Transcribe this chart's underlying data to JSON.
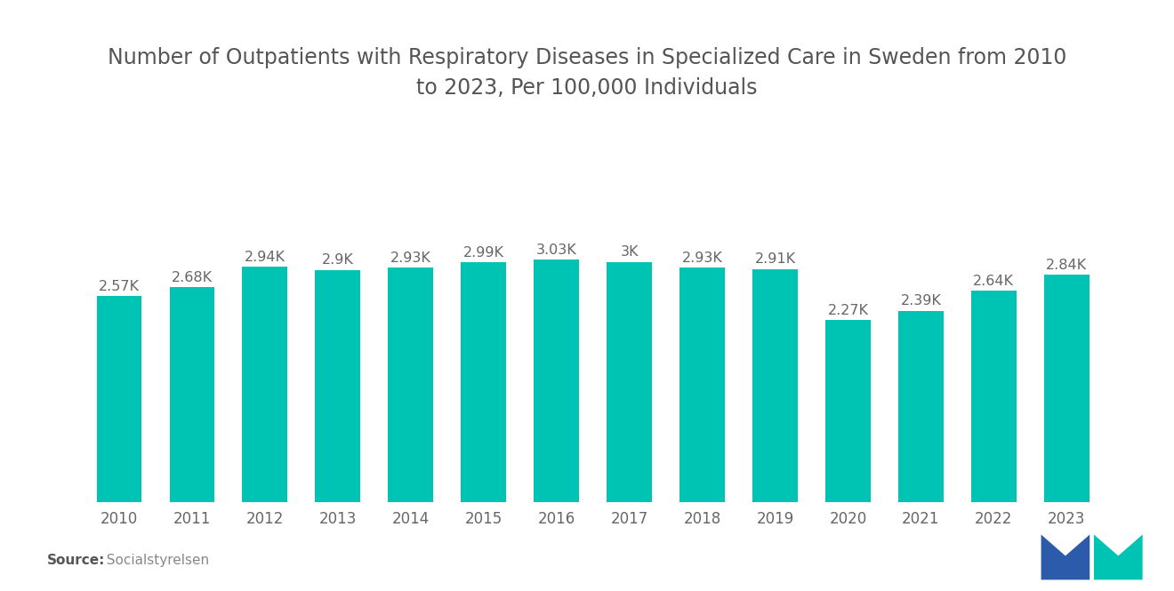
{
  "title": "Number of Outpatients with Respiratory Diseases in Specialized Care in Sweden from 2010\nto 2023, Per 100,000 Individuals",
  "years": [
    2010,
    2011,
    2012,
    2013,
    2014,
    2015,
    2016,
    2017,
    2018,
    2019,
    2020,
    2021,
    2022,
    2023
  ],
  "values": [
    2570,
    2680,
    2940,
    2900,
    2930,
    2990,
    3030,
    3000,
    2930,
    2910,
    2270,
    2390,
    2640,
    2840
  ],
  "labels": [
    "2.57K",
    "2.68K",
    "2.94K",
    "2.9K",
    "2.93K",
    "2.99K",
    "3.03K",
    "3K",
    "2.93K",
    "2.91K",
    "2.27K",
    "2.39K",
    "2.64K",
    "2.84K"
  ],
  "bar_color": "#00C4B3",
  "background_color": "#ffffff",
  "title_fontsize": 17,
  "label_fontsize": 11.5,
  "tick_fontsize": 12,
  "source_bold": "Source:",
  "source_regular": "  Socialstyrelsen",
  "ylim": [
    0,
    4200
  ],
  "logo_blue": "#2B5BAA",
  "logo_teal": "#00C4B3"
}
